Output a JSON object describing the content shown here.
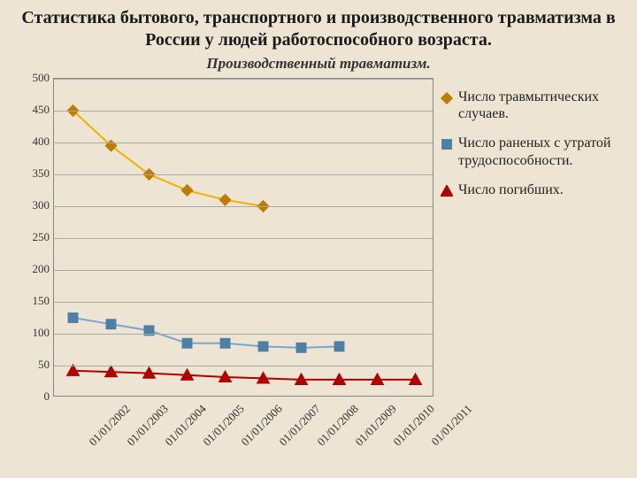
{
  "title": {
    "text": "Статистика бытового, транспортного и производственного травматизма в России у людей работоспособного возраста.",
    "fontsize": 20
  },
  "subtitle": {
    "text": "Производственный травматизм.",
    "fontsize": 17
  },
  "chart": {
    "type": "line",
    "background_color": "#ede4d3",
    "grid_color": "#aaaaaa",
    "border_color": "#888888",
    "ylim": [
      0,
      500
    ],
    "ytick_step": 50,
    "yticks": [
      "0",
      "50",
      "100",
      "150",
      "200",
      "250",
      "300",
      "350",
      "400",
      "450",
      "500"
    ],
    "categories": [
      "01/01/2002",
      "01/01/2003",
      "01/01/2004",
      "01/01/2005",
      "01/01/2006",
      "01/01/2007",
      "01/01/2008",
      "01/01/2009",
      "01/01/2010",
      "01/01/2011"
    ],
    "x_label_fontsize": 13,
    "y_label_fontsize": 13,
    "x_label_rotation": -45,
    "series": [
      {
        "name": "Число травмытических случаев.",
        "values": [
          450,
          395,
          350,
          325,
          310,
          300
        ],
        "color": "#f2b100",
        "line_width": 2,
        "marker": "diamond",
        "marker_color": "#c07c00",
        "marker_size": 7
      },
      {
        "name": "Число раненых с утратой трудоспособности.",
        "values": [
          125,
          115,
          105,
          85,
          85,
          80,
          78,
          80
        ],
        "color": "#7aa7cc",
        "line_width": 2,
        "marker": "square",
        "marker_color": "#4e7fa6",
        "marker_size": 6
      },
      {
        "name": "Число погибших.",
        "values": [
          42,
          40,
          38,
          35,
          32,
          30,
          28,
          28,
          28,
          28
        ],
        "color": "#b00000",
        "line_width": 2,
        "marker": "triangle",
        "marker_color": "#b00000",
        "marker_size": 7
      }
    ],
    "legend_fontsize": 16
  }
}
